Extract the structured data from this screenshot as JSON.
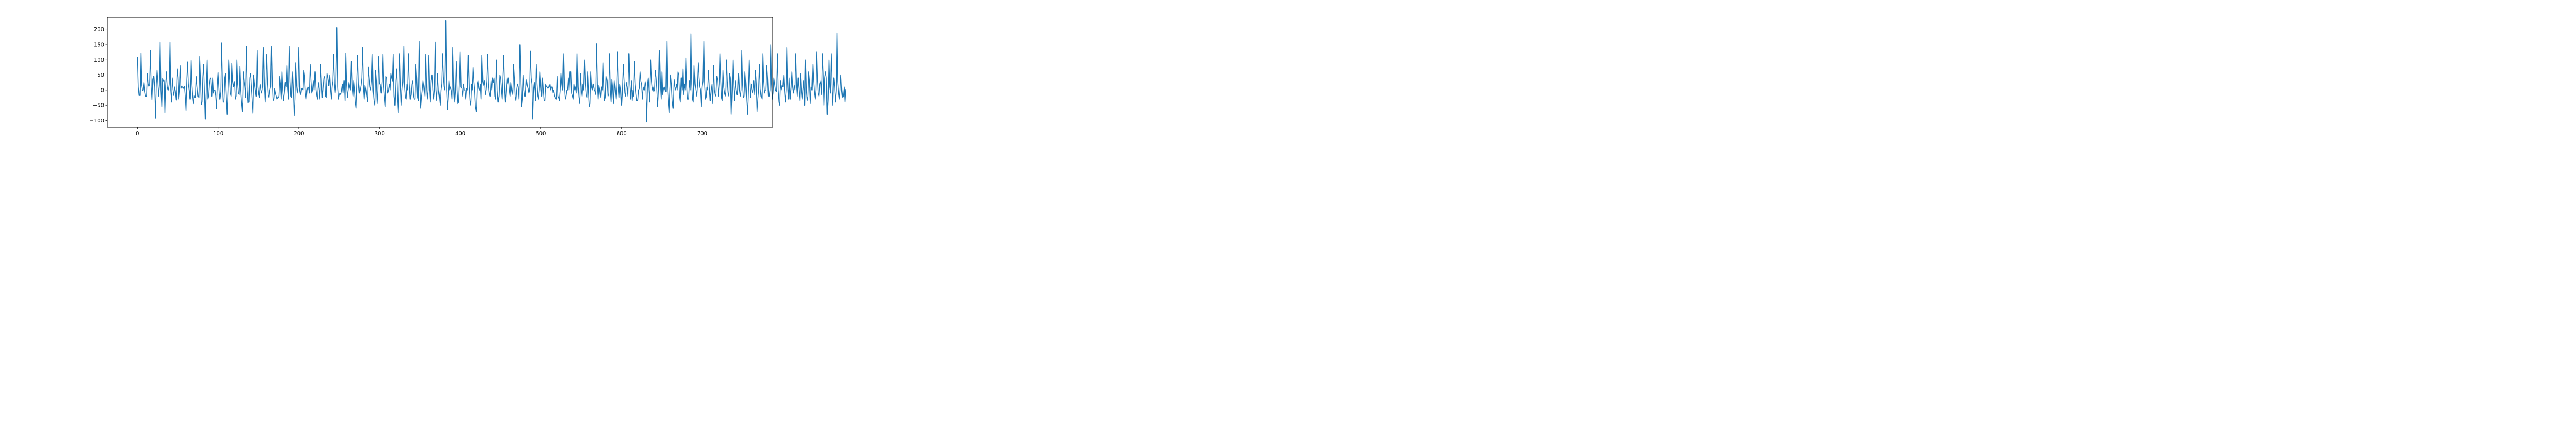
{
  "chart_data": {
    "type": "line",
    "title": "",
    "xlabel": "",
    "ylabel": "",
    "xlim": [
      -37.5,
      787.5
    ],
    "ylim": [
      -122,
      240
    ],
    "grid": false,
    "legend": "none",
    "x_ticks": [
      0,
      100,
      200,
      300,
      400,
      500,
      600,
      700
    ],
    "y_ticks": [
      -100,
      -50,
      0,
      50,
      100,
      150,
      200
    ],
    "series": [
      {
        "color": "#1f77b4",
        "x_start": 0,
        "x_step": 1,
        "values": [
          108,
          10,
          -18,
          -18,
          122,
          15,
          -2,
          0,
          25,
          -5,
          -20,
          -20,
          55,
          20,
          12,
          18,
          130,
          10,
          -32,
          35,
          45,
          10,
          -92,
          20,
          66,
          30,
          -20,
          15,
          158,
          0,
          -55,
          38,
          30,
          30,
          -75,
          15,
          60,
          10,
          0,
          20,
          158,
          0,
          -40,
          40,
          0,
          -18,
          10,
          -5,
          -33,
          70,
          42,
          -30,
          0,
          80,
          5,
          12,
          10,
          5,
          12,
          -20,
          -68,
          30,
          93,
          20,
          0,
          -30,
          98,
          20,
          -20,
          -45,
          -18,
          -25,
          -25,
          45,
          10,
          -20,
          -25,
          110,
          30,
          -48,
          -40,
          40,
          85,
          0,
          -95,
          20,
          100,
          -30,
          -20,
          20,
          38,
          40,
          -20,
          40,
          -10,
          0,
          0,
          -20,
          -62,
          20,
          58,
          10,
          -30,
          -5,
          155,
          20,
          -40,
          -40,
          40,
          55,
          -15,
          -80,
          0,
          100,
          40,
          -10,
          -20,
          88,
          30,
          10,
          28,
          -30,
          -20,
          100,
          20,
          -10,
          -15,
          78,
          0,
          -40,
          -70,
          60,
          30,
          10,
          -25,
          145,
          0,
          -42,
          -40,
          40,
          55,
          10,
          -30,
          -76,
          50,
          20,
          0,
          -20,
          130,
          10,
          -15,
          -25,
          20,
          0,
          -10,
          10,
          140,
          15,
          -40,
          20,
          118,
          30,
          -15,
          -25,
          0,
          10,
          145,
          30,
          -35,
          -30,
          5,
          -10,
          -20,
          -30,
          -25,
          -20,
          45,
          20,
          -30,
          60,
          0,
          -35,
          -10,
          25,
          10,
          80,
          5,
          -30,
          145,
          30,
          -20,
          -25,
          60,
          0,
          -85,
          -30,
          90,
          20,
          -10,
          10,
          140,
          0,
          -15,
          5,
          5,
          0,
          65,
          45,
          -10,
          -30,
          0,
          10,
          5,
          -10,
          85,
          30,
          -10,
          0,
          30,
          0,
          60,
          0,
          -20,
          -30,
          25,
          5,
          -30,
          85,
          25,
          -25,
          10,
          40,
          45,
          -20,
          -25,
          55,
          40,
          15,
          50,
          0,
          -30,
          10,
          30,
          118,
          20,
          -10,
          20,
          205,
          10,
          -30,
          -15,
          -10,
          -15,
          0,
          20,
          -10,
          30,
          -35,
          122,
          20,
          -25,
          0,
          25,
          10,
          0,
          95,
          10,
          -20,
          30,
          0,
          -40,
          -60,
          25,
          115,
          20,
          -10,
          0,
          15,
          40,
          140,
          10,
          -30,
          15,
          0,
          -20,
          -38,
          75,
          40,
          10,
          0,
          30,
          118,
          0,
          -35,
          -50,
          65,
          30,
          -45,
          0,
          110,
          20,
          20,
          -10,
          30,
          118,
          10,
          -25,
          -55,
          45,
          40,
          -10,
          0,
          20,
          0,
          55,
          40,
          30,
          118,
          -20,
          -50,
          30,
          70,
          -25,
          -75,
          0,
          120,
          20,
          -50,
          0,
          28,
          145,
          10,
          -25,
          -30,
          20,
          0,
          120,
          20,
          -30,
          -15,
          20,
          30,
          -20,
          -30,
          -30,
          85,
          40,
          -25,
          -35,
          160,
          10,
          -60,
          -25,
          0,
          30,
          10,
          -20,
          118,
          20,
          -30,
          0,
          115,
          10,
          -40,
          30,
          50,
          0,
          -30,
          0,
          158,
          0,
          -35,
          55,
          0,
          -20,
          -50,
          0,
          20,
          120,
          45,
          10,
          0,
          228,
          0,
          -65,
          -20,
          30,
          0,
          10,
          0,
          -30,
          140,
          10,
          -40,
          0,
          95,
          0,
          -45,
          -40,
          30,
          125,
          10,
          5,
          -20,
          20,
          0,
          0,
          -30,
          5,
          0,
          115,
          10,
          -35,
          -50,
          20,
          0,
          75,
          30,
          0,
          -55,
          -70,
          20,
          30,
          5,
          0,
          20,
          -30,
          115,
          30,
          15,
          30,
          -15,
          0,
          30,
          118,
          20,
          -10,
          -20,
          30,
          0,
          40,
          25,
          40,
          -20,
          -30,
          100,
          0,
          -40,
          -20,
          50,
          40,
          0,
          -30,
          40,
          115,
          10,
          -40,
          0,
          40,
          20,
          40,
          0,
          -20,
          25,
          0,
          -15,
          85,
          40,
          -20,
          -35,
          0,
          20,
          10,
          -30,
          150,
          20,
          -55,
          -30,
          50,
          0,
          -20,
          -20,
          35,
          15,
          5,
          -10,
          0,
          128,
          40,
          20,
          -95,
          0,
          25,
          -35,
          85,
          20,
          -20,
          -30,
          0,
          60,
          10,
          -20,
          40,
          0,
          -35,
          -35,
          20,
          10,
          10,
          5,
          10,
          20,
          0,
          10,
          10,
          -10,
          0,
          -20,
          -25,
          -30,
          45,
          -20,
          -25,
          -35,
          0,
          55,
          20,
          0,
          120,
          10,
          -30,
          -20,
          0,
          0,
          40,
          0,
          60,
          60,
          -10,
          -20,
          -30,
          20,
          0,
          10,
          -10,
          120,
          10,
          -25,
          -45,
          55,
          0,
          -20,
          20,
          0,
          100,
          20,
          -15,
          -25,
          60,
          0,
          -55,
          -45,
          60,
          10,
          0,
          20,
          0,
          -5,
          -15,
          152,
          20,
          -30,
          15,
          0,
          -25,
          10,
          0,
          90,
          10,
          -35,
          -25,
          45,
          30,
          -20,
          -15,
          120,
          0,
          -40,
          35,
          5,
          -45,
          30,
          0,
          -30,
          10,
          125,
          10,
          -25,
          20,
          0,
          -50,
          0,
          85,
          30,
          -10,
          -20,
          25,
          10,
          -20,
          120,
          20,
          -30,
          30,
          -35,
          0,
          -20,
          95,
          20,
          -10,
          -35,
          -35,
          0,
          5,
          60,
          30,
          20,
          -30,
          10,
          0,
          28,
          10,
          -105,
          20,
          40,
          0,
          -40,
          100,
          30,
          0,
          10,
          -5,
          0,
          65,
          40,
          0,
          -55,
          0,
          130,
          20,
          -30,
          60,
          -15,
          5,
          10,
          0,
          -5,
          160,
          10,
          -40,
          -75,
          0,
          50,
          20,
          -35,
          -60,
          35,
          10,
          0,
          20,
          0,
          60,
          50,
          -20,
          -40,
          40,
          0,
          70,
          -15,
          20,
          0,
          105,
          20,
          -30,
          -30,
          30,
          0,
          185,
          20,
          -30,
          -40,
          80,
          20,
          0,
          -20,
          20,
          90,
          40,
          10,
          0,
          -55,
          10,
          30,
          160,
          20,
          -30,
          -25,
          10,
          0,
          65,
          10,
          -35,
          0,
          20,
          -45,
          80,
          0,
          -15,
          -20,
          45,
          30,
          -20,
          20,
          120,
          40,
          -25,
          -35,
          65,
          10,
          -10,
          -20,
          100,
          30,
          -10,
          -20,
          55,
          40,
          -80,
          -5,
          100,
          20,
          -35,
          30,
          0,
          -15,
          -15,
          55,
          0,
          -20,
          0,
          130,
          20,
          -25,
          -20,
          60,
          20,
          -35,
          -80,
          0,
          100,
          30,
          -25,
          20,
          0,
          -10,
          30,
          -15,
          65,
          20,
          -70,
          -30,
          0,
          85,
          5,
          -20,
          -30,
          120,
          30,
          -10,
          0,
          0,
          80,
          40,
          -20,
          -20,
          0,
          150,
          20,
          -30,
          -10,
          40,
          20,
          0,
          -5,
          120,
          0,
          -40,
          -50,
          30,
          0,
          15,
          10,
          50,
          0,
          -40,
          0,
          140,
          20,
          -30,
          40,
          -30,
          10,
          60,
          10,
          -10,
          15,
          0,
          120,
          20,
          -20,
          40,
          0,
          -35,
          55,
          0,
          -30,
          0,
          30,
          -50,
          100,
          0,
          -35,
          -20,
          60,
          30,
          -45,
          10,
          0,
          85,
          30,
          -10,
          -30,
          0,
          125,
          40,
          -10,
          -20,
          20,
          30,
          -15,
          120,
          50,
          -50,
          40,
          60,
          40,
          -80,
          -30,
          100,
          10,
          -10,
          120,
          20,
          -50,
          40,
          10,
          -40,
          0,
          188,
          30,
          -10,
          -30,
          0,
          50,
          0,
          -25,
          -20,
          10,
          -40,
          3
        ],
        "values_note": ""
      }
    ]
  }
}
